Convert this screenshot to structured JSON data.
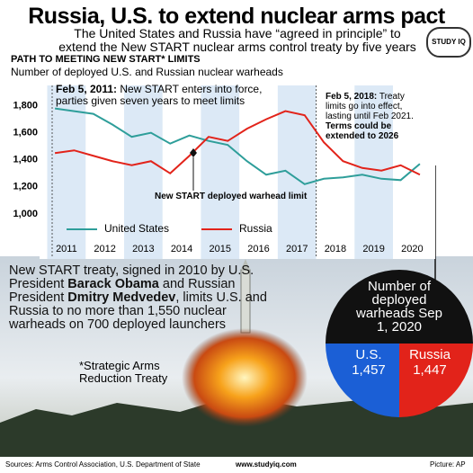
{
  "header": {
    "title": "Russia, U.S. to extend nuclear arms pact",
    "subtitle": "The United States and Russia have “agreed in principle” to extend the New START nuclear arms control treaty by five years",
    "logo": "STUDY IQ"
  },
  "chart_data": {
    "type": "line",
    "title": "PATH TO MEETING NEW START* LIMITS",
    "subtitle": "Number of deployed U.S. and Russian nuclear warheads",
    "x": [
      2010.7,
      2011.2,
      2011.7,
      2012.2,
      2012.7,
      2013.2,
      2013.7,
      2014.2,
      2014.7,
      2015.2,
      2015.7,
      2016.2,
      2016.7,
      2017.2,
      2017.7,
      2018.2,
      2018.7,
      2019.2,
      2019.7,
      2020.2
    ],
    "series": [
      {
        "name": "United States",
        "color": "#2e9e9a",
        "values": [
          1780,
          1760,
          1740,
          1660,
          1570,
          1600,
          1520,
          1580,
          1540,
          1510,
          1390,
          1290,
          1320,
          1220,
          1260,
          1270,
          1290,
          1260,
          1250,
          1370
        ]
      },
      {
        "name": "Russia",
        "color": "#e2231a",
        "values": [
          1450,
          1470,
          1430,
          1390,
          1360,
          1390,
          1300,
          1430,
          1570,
          1540,
          1630,
          1700,
          1760,
          1730,
          1530,
          1390,
          1340,
          1320,
          1360,
          1290
        ]
      }
    ],
    "xlim": [
      2010.3,
      2020.6
    ],
    "xticks": [
      2011,
      2012,
      2013,
      2014,
      2015,
      2016,
      2017,
      2018,
      2019,
      2020
    ],
    "ylim": [
      800,
      1950
    ],
    "yticks": [
      {
        "value": 1000,
        "label": "1,000"
      },
      {
        "value": 1200,
        "label": "1,200"
      },
      {
        "value": 1400,
        "label": "1,400"
      },
      {
        "value": 1600,
        "label": "1,600"
      },
      {
        "value": 1800,
        "label": "1,800"
      }
    ],
    "annotations": [
      {
        "bold": "Feb 5, 2011:",
        "text": " New START enters into force, parties given seven years to meet limits"
      },
      {
        "bold": "Feb 5, 2018:",
        "text": " Treaty limits go into effect, lasting until Feb 2021. ",
        "bold2": "Terms could be extended to 2026"
      },
      {
        "text": "New START deployed warhead limit"
      }
    ]
  },
  "treaty": {
    "parts": [
      "New START treaty, signed in 2010 by U.S. President ",
      "Barack Obama",
      " and Russian President ",
      "Dmitry Medvedev",
      ", limits U.S. and Russia to no more than 1,550 nuclear warheads on 700 deployed launchers"
    ],
    "footnote": "*Strategic Arms Reduction Treaty"
  },
  "totals": {
    "heading": "Number of deployed warheads Sep 1, 2020",
    "items": [
      {
        "label": "U.S.",
        "value": "1,457"
      },
      {
        "label": "Russia",
        "value": "1,447"
      }
    ]
  },
  "footer": {
    "sources": "Sources: Arms Control Association, U.S. Department of State",
    "site": "www.studyiq.com",
    "credit": "Picture: AP"
  }
}
